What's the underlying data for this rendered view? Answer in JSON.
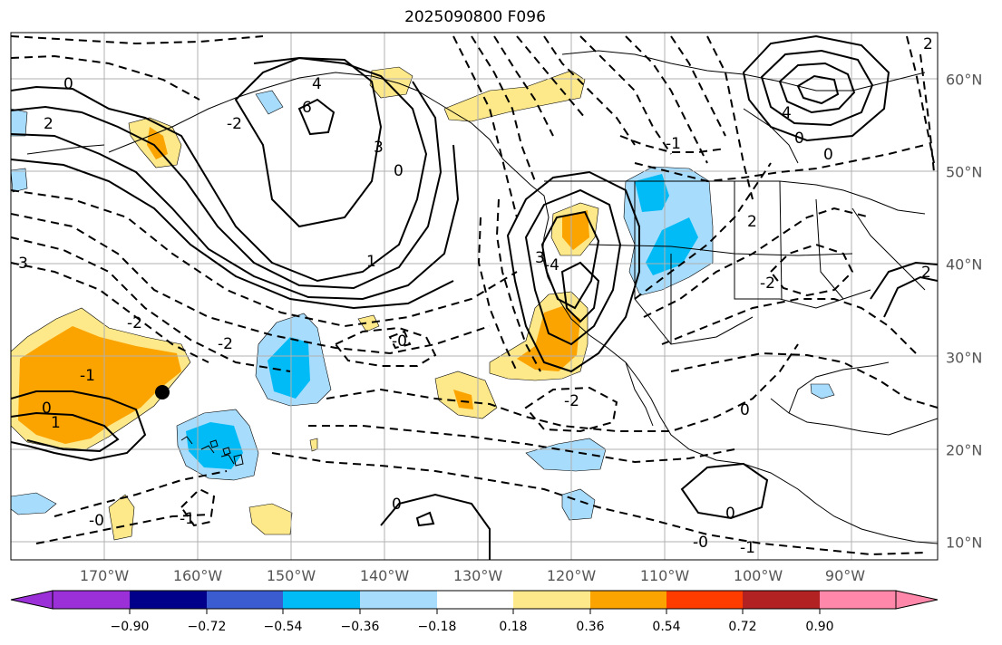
{
  "title": "2025090800 F096",
  "map": {
    "lon_labels": [
      "170°W",
      "160°W",
      "150°W",
      "140°W",
      "130°W",
      "120°W",
      "110°W",
      "100°W",
      "90°W"
    ],
    "lat_labels": [
      "60°N",
      "50°N",
      "40°N",
      "30°N",
      "20°N",
      "10°N"
    ],
    "contour_labels": [
      "0",
      "2",
      "-2",
      "3",
      "6",
      "4",
      "-3",
      "-1",
      "1",
      "0",
      "0",
      "-4",
      "3",
      "4",
      "0",
      "-1",
      "2",
      "-2",
      "2",
      "-2",
      "-0",
      "-2",
      "0",
      "-0",
      "0",
      "-1",
      "-0",
      "-1",
      "2",
      "1",
      "0",
      "-2",
      "0"
    ],
    "marker": "point",
    "colors": {
      "light_blue": "#a8dcfc",
      "blue": "#00bbf5",
      "light_yellow": "#fde88a",
      "orange": "#fba400"
    }
  },
  "colorbar": {
    "tick_labels": [
      "−0.90",
      "−0.72",
      "−0.54",
      "−0.36",
      "−0.18",
      "0.18",
      "0.36",
      "0.54",
      "0.72",
      "0.90"
    ],
    "colors": [
      "#9b30d8",
      "#00008b",
      "#3b5bd0",
      "#00bbf5",
      "#a8dcfc",
      "#ffffff",
      "#fde88a",
      "#fba400",
      "#ff3c00",
      "#b22222",
      "#ff88aa"
    ]
  }
}
